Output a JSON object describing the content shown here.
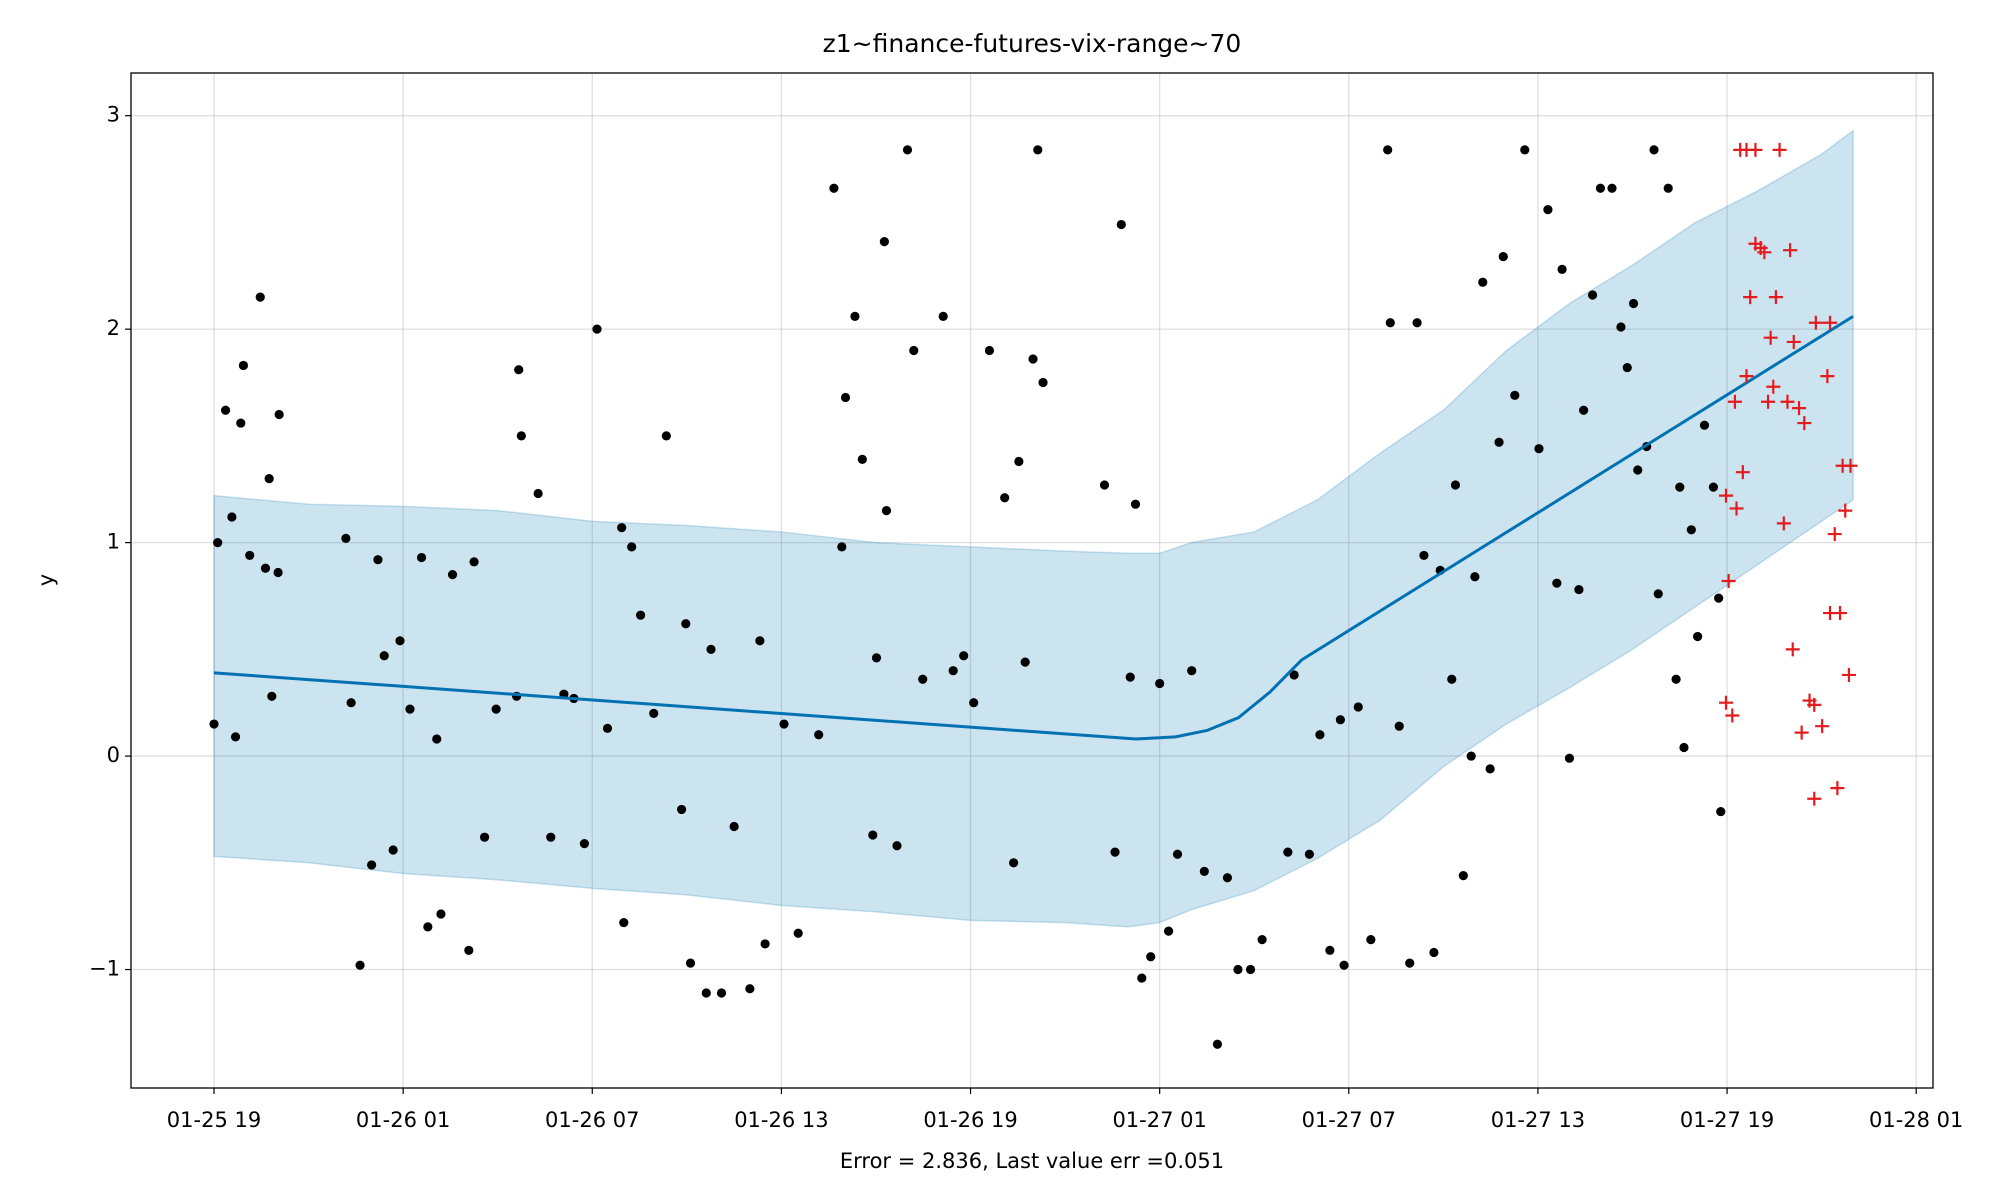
{
  "chart_data": {
    "type": "line",
    "title": "z1~finance-futures-vix-range~70",
    "xlabel": "Error = 2.836, Last value err =0.051",
    "ylabel": "y",
    "grid": true,
    "xlim": [
      "01-25 16:22",
      "01-28 01:32"
    ],
    "xticks": [
      "01-25 19",
      "01-26 01",
      "01-26 07",
      "01-26 13",
      "01-26 19",
      "01-27 01",
      "01-27 07",
      "01-27 13",
      "01-27 19",
      "01-28 01"
    ],
    "ylim": [
      -1.555,
      3.2
    ],
    "yticks": [
      {
        "value": -1,
        "label": "−1"
      },
      0,
      1,
      2,
      3
    ],
    "series": [
      {
        "type": "band",
        "color": "#0072b2",
        "x": [
          "01-25 19:00",
          "01-25 22:00",
          "01-26 01:00",
          "01-26 04:00",
          "01-26 07:00",
          "01-26 10:00",
          "01-26 13:00",
          "01-26 16:00",
          "01-26 19:00",
          "01-26 22:00",
          "01-27 00:00",
          "01-27 01:00",
          "01-27 02:00",
          "01-27 04:00",
          "01-27 06:00",
          "01-27 08:00",
          "01-27 10:00",
          "01-27 12:00",
          "01-27 14:00",
          "01-27 16:00",
          "01-27 18:00",
          "01-27 20:00",
          "01-27 22:00",
          "01-27 23:00"
        ],
        "upper": [
          1.22,
          1.18,
          1.17,
          1.15,
          1.1,
          1.08,
          1.05,
          1.0,
          0.98,
          0.96,
          0.95,
          0.95,
          1.0,
          1.05,
          1.2,
          1.42,
          1.62,
          1.9,
          2.12,
          2.3,
          2.5,
          2.65,
          2.82,
          2.93
        ],
        "lower": [
          -0.47,
          -0.5,
          -0.55,
          -0.58,
          -0.62,
          -0.65,
          -0.7,
          -0.73,
          -0.77,
          -0.78,
          -0.8,
          -0.78,
          -0.72,
          -0.63,
          -0.48,
          -0.3,
          -0.05,
          0.15,
          0.32,
          0.5,
          0.7,
          0.9,
          1.1,
          1.2
        ]
      },
      {
        "type": "scatter",
        "marker": "o",
        "color": "#000000",
        "x": [
          "01-25 19:00",
          "01-25 19:07",
          "01-25 19:22",
          "01-25 19:34",
          "01-25 19:41",
          "01-25 19:51",
          "01-25 19:56",
          "01-25 20:08",
          "01-25 20:28",
          "01-25 20:38",
          "01-25 20:45",
          "01-25 20:50",
          "01-25 21:02",
          "01-25 21:04",
          "01-25 23:11",
          "01-25 23:21",
          "01-25 23:38",
          "01-26 00:00",
          "01-26 00:12",
          "01-26 00:24",
          "01-26 00:41",
          "01-26 00:54",
          "01-26 01:13",
          "01-26 01:35",
          "01-26 01:47",
          "01-26 02:04",
          "01-26 02:12",
          "01-26 02:34",
          "01-26 03:05",
          "01-26 03:15",
          "01-26 03:35",
          "01-26 03:57",
          "01-26 04:36",
          "01-26 04:40",
          "01-26 04:45",
          "01-26 05:17",
          "01-26 05:41",
          "01-26 06:06",
          "01-26 06:25",
          "01-26 06:45",
          "01-26 07:09",
          "01-26 07:29",
          "01-26 07:56",
          "01-26 08:00",
          "01-26 08:15",
          "01-26 08:32",
          "01-26 08:57",
          "01-26 09:21",
          "01-26 09:50",
          "01-26 09:58",
          "01-26 10:07",
          "01-26 10:37",
          "01-26 10:46",
          "01-26 11:06",
          "01-26 11:30",
          "01-26 12:00",
          "01-26 12:19",
          "01-26 12:29",
          "01-26 13:05",
          "01-26 13:32",
          "01-26 14:11",
          "01-26 14:40",
          "01-26 14:55",
          "01-26 15:02",
          "01-26 15:20",
          "01-26 15:34",
          "01-26 15:54",
          "01-26 16:01",
          "01-26 16:16",
          "01-26 16:20",
          "01-26 16:40",
          "01-26 17:00",
          "01-26 17:12",
          "01-26 17:29",
          "01-26 18:08",
          "01-26 18:27",
          "01-26 18:47",
          "01-26 19:06",
          "01-26 19:36",
          "01-26 20:05",
          "01-26 20:22",
          "01-26 20:32",
          "01-26 20:44",
          "01-26 20:59",
          "01-26 21:08",
          "01-26 21:18",
          "01-26 23:15",
          "01-26 23:35",
          "01-26 23:47",
          "01-27 00:04",
          "01-27 00:14",
          "01-27 00:26",
          "01-27 00:43",
          "01-27 01:00",
          "01-27 01:17",
          "01-27 01:34",
          "01-27 02:01",
          "01-27 02:25",
          "01-27 02:50",
          "01-27 03:09",
          "01-27 03:29",
          "01-27 03:53",
          "01-27 04:15",
          "01-27 05:04",
          "01-27 05:16",
          "01-27 05:45",
          "01-27 06:05",
          "01-27 06:24",
          "01-27 06:44",
          "01-27 06:51",
          "01-27 07:18",
          "01-27 07:42",
          "01-27 08:14",
          "01-27 08:19",
          "01-27 08:36",
          "01-27 08:56",
          "01-27 09:10",
          "01-27 09:23",
          "01-27 09:42",
          "01-27 09:54",
          "01-27 10:16",
          "01-27 10:23",
          "01-27 10:38",
          "01-27 10:53",
          "01-27 11:00",
          "01-27 11:15",
          "01-27 11:29",
          "01-27 11:46",
          "01-27 11:54",
          "01-27 12:16",
          "01-27 12:35",
          "01-27 13:02",
          "01-27 13:19",
          "01-27 13:36",
          "01-27 13:46",
          "01-27 14:00",
          "01-27 14:18",
          "01-27 14:27",
          "01-27 14:44",
          "01-27 14:59",
          "01-27 15:21",
          "01-27 15:38",
          "01-27 15:50",
          "01-27 16:02",
          "01-27 16:10",
          "01-27 16:27",
          "01-27 16:41",
          "01-27 16:49",
          "01-27 17:08",
          "01-27 17:23",
          "01-27 17:30",
          "01-27 17:38",
          "01-27 17:52",
          "01-27 18:04",
          "01-27 18:17",
          "01-27 18:34",
          "01-27 18:44",
          "01-27 18:48"
        ],
        "values": [
          0.15,
          1.0,
          1.62,
          1.12,
          0.09,
          1.56,
          1.83,
          0.94,
          2.15,
          0.88,
          1.3,
          0.28,
          0.86,
          1.6,
          1.02,
          0.25,
          -0.98,
          -0.51,
          0.92,
          0.47,
          -0.44,
          0.54,
          0.22,
          0.93,
          -0.8,
          0.08,
          -0.74,
          0.85,
          -0.91,
          0.91,
          -0.38,
          0.22,
          0.28,
          1.81,
          1.5,
          1.23,
          -0.38,
          0.29,
          0.27,
          -0.41,
          2.0,
          0.13,
          1.07,
          -0.78,
          0.98,
          0.66,
          0.2,
          1.5,
          -0.25,
          0.62,
          -0.97,
          -1.11,
          0.5,
          -1.11,
          -0.33,
          -1.09,
          0.54,
          -0.88,
          0.15,
          -0.83,
          0.1,
          2.66,
          0.98,
          1.68,
          2.06,
          1.39,
          -0.37,
          0.46,
          2.41,
          1.15,
          -0.42,
          2.84,
          1.9,
          0.36,
          2.06,
          0.4,
          0.47,
          0.25,
          1.9,
          1.21,
          -0.5,
          1.38,
          0.44,
          1.86,
          2.84,
          1.75,
          1.27,
          -0.45,
          2.49,
          0.37,
          1.18,
          -1.04,
          -0.94,
          0.34,
          -0.82,
          -0.46,
          0.4,
          -0.54,
          -1.35,
          -0.57,
          -1.0,
          -1.0,
          -0.86,
          -0.45,
          0.38,
          -0.46,
          0.1,
          -0.91,
          0.17,
          -0.98,
          0.23,
          -0.86,
          2.84,
          2.03,
          0.14,
          -0.97,
          2.03,
          0.94,
          -0.92,
          0.87,
          0.36,
          1.27,
          -0.56,
          0.0,
          0.84,
          2.22,
          -0.06,
          1.47,
          2.34,
          1.69,
          2.84,
          1.44,
          2.56,
          0.81,
          2.28,
          -0.01,
          0.78,
          1.62,
          2.16,
          2.66,
          2.66,
          2.01,
          1.82,
          2.12,
          1.34,
          1.45,
          2.84,
          0.76,
          2.66,
          0.36,
          1.26,
          0.04,
          1.06,
          0.56,
          1.55,
          1.26,
          0.74,
          -0.26
        ]
      },
      {
        "type": "line",
        "color": "#0072b2",
        "x": [
          "01-25 19:00",
          "01-27 00:15",
          "01-27 01:30",
          "01-27 02:30",
          "01-27 03:30",
          "01-27 04:30",
          "01-27 05:30",
          "01-27 23:00"
        ],
        "values": [
          0.39,
          0.08,
          0.09,
          0.12,
          0.18,
          0.3,
          0.45,
          2.06
        ]
      },
      {
        "type": "scatter",
        "marker": "+",
        "color": "#e41a1c",
        "x": [
          "01-27 18:58",
          "01-27 18:58",
          "01-27 19:03",
          "01-27 19:10",
          "01-27 19:15",
          "01-27 19:18",
          "01-27 19:25",
          "01-27 19:30",
          "01-27 19:37",
          "01-27 19:37",
          "01-27 19:44",
          "01-27 19:54",
          "01-27 19:54",
          "01-27 20:04",
          "01-27 20:11",
          "01-27 20:18",
          "01-27 20:23",
          "01-27 20:28",
          "01-27 20:33",
          "01-27 20:40",
          "01-27 20:48",
          "01-27 20:55",
          "01-27 21:00",
          "01-27 21:05",
          "01-27 21:07",
          "01-27 21:17",
          "01-27 21:22",
          "01-27 21:27",
          "01-27 21:37",
          "01-27 21:46",
          "01-27 21:46",
          "01-27 21:49",
          "01-27 22:01",
          "01-27 22:11",
          "01-27 22:16",
          "01-27 22:16",
          "01-27 22:25",
          "01-27 22:30",
          "01-27 22:35",
          "01-27 22:40",
          "01-27 22:45",
          "01-27 22:52",
          "01-27 22:55"
        ],
        "values": [
          0.25,
          1.22,
          0.82,
          0.19,
          1.66,
          1.16,
          2.84,
          1.33,
          2.84,
          1.78,
          2.15,
          2.84,
          2.4,
          2.38,
          2.36,
          1.66,
          1.96,
          1.73,
          2.15,
          2.84,
          1.09,
          1.66,
          2.37,
          0.5,
          1.94,
          1.63,
          0.11,
          1.56,
          0.26,
          0.24,
          -0.2,
          2.03,
          0.14,
          1.78,
          2.03,
          0.67,
          1.04,
          -0.15,
          0.67,
          1.36,
          1.15,
          0.38,
          1.36
        ]
      }
    ]
  }
}
